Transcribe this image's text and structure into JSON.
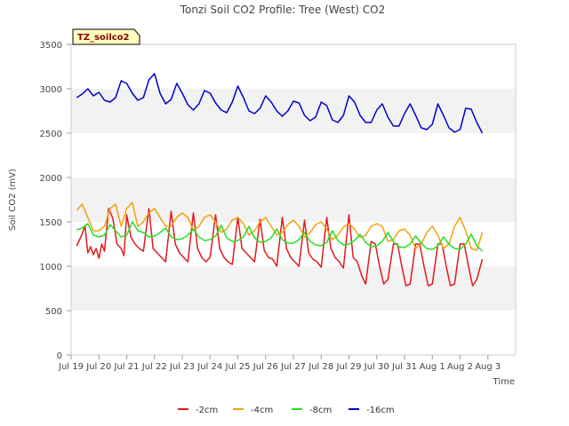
{
  "chart_data": {
    "type": "line",
    "title": "Tonzi Soil CO2 Profile: Tree (West) CO2",
    "xlabel": "Time",
    "ylabel": "Soil CO2 (mV)",
    "tag": "TZ_soilco2",
    "ylim": [
      0,
      3500
    ],
    "yticks": [
      0,
      500,
      1000,
      1500,
      2000,
      2500,
      3000,
      3500
    ],
    "xlim": [
      0,
      16
    ],
    "xtick_labels": [
      "Jul 19",
      "Jul 20",
      "Jul 21",
      "Jul 22",
      "Jul 23",
      "Jul 24",
      "Jul 25",
      "Jul 26",
      "Jul 27",
      "Jul 28",
      "Jul 29",
      "Jul 30",
      "Jul 31",
      "Aug 1",
      "Aug 2",
      "Aug 3"
    ],
    "x_unit": "days since Jul 19 00:00",
    "grid": "horizontal bands",
    "legend_position": "bottom",
    "series": [
      {
        "name": "-2cm",
        "color": "#e31a1c",
        "x": [
          0.2,
          0.35,
          0.5,
          0.6,
          0.7,
          0.8,
          0.9,
          1.0,
          1.1,
          1.2,
          1.35,
          1.5,
          1.65,
          1.8,
          1.9,
          2.0,
          2.15,
          2.3,
          2.45,
          2.6,
          2.8,
          2.95,
          3.1,
          3.25,
          3.4,
          3.6,
          3.75,
          3.9,
          4.05,
          4.2,
          4.4,
          4.55,
          4.7,
          4.85,
          5.0,
          5.2,
          5.35,
          5.5,
          5.65,
          5.8,
          6.0,
          6.15,
          6.3,
          6.45,
          6.6,
          6.8,
          6.95,
          7.1,
          7.25,
          7.4,
          7.6,
          7.75,
          7.9,
          8.05,
          8.2,
          8.4,
          8.55,
          8.7,
          8.85,
          9.0,
          9.2,
          9.35,
          9.5,
          9.65,
          9.8,
          10.0,
          10.15,
          10.3,
          10.45,
          10.6,
          10.8,
          10.95,
          11.1,
          11.25,
          11.4,
          11.6,
          11.75,
          11.9,
          12.05,
          12.2,
          12.4,
          12.55,
          12.7,
          12.85,
          13.0,
          13.2,
          13.35,
          13.5,
          13.65,
          13.8,
          14.0,
          14.15,
          14.3,
          14.45,
          14.6,
          14.8
        ],
        "values": [
          1230,
          1330,
          1450,
          1150,
          1220,
          1130,
          1200,
          1090,
          1250,
          1170,
          1650,
          1540,
          1250,
          1200,
          1120,
          1580,
          1330,
          1250,
          1200,
          1170,
          1650,
          1200,
          1150,
          1100,
          1050,
          1620,
          1250,
          1150,
          1100,
          1050,
          1600,
          1200,
          1100,
          1050,
          1100,
          1580,
          1200,
          1100,
          1050,
          1020,
          1550,
          1200,
          1150,
          1100,
          1050,
          1530,
          1180,
          1100,
          1080,
          1000,
          1550,
          1200,
          1100,
          1050,
          1000,
          1520,
          1150,
          1080,
          1050,
          990,
          1550,
          1200,
          1100,
          1050,
          980,
          1580,
          1100,
          1050,
          900,
          800,
          1280,
          1250,
          1000,
          800,
          850,
          1250,
          1250,
          1000,
          780,
          800,
          1250,
          1250,
          1000,
          780,
          800,
          1250,
          1250,
          1000,
          780,
          800,
          1250,
          1250,
          1000,
          780,
          850,
          1080
        ]
      },
      {
        "name": "-4cm",
        "color": "#f0a30a",
        "x": [
          0.2,
          0.4,
          0.6,
          0.8,
          1.0,
          1.2,
          1.4,
          1.6,
          1.8,
          2.0,
          2.2,
          2.4,
          2.6,
          2.8,
          3.0,
          3.2,
          3.4,
          3.6,
          3.8,
          4.0,
          4.2,
          4.4,
          4.6,
          4.8,
          5.0,
          5.2,
          5.4,
          5.6,
          5.8,
          6.0,
          6.2,
          6.4,
          6.6,
          6.8,
          7.0,
          7.2,
          7.4,
          7.6,
          7.8,
          8.0,
          8.2,
          8.4,
          8.6,
          8.8,
          9.0,
          9.2,
          9.4,
          9.6,
          9.8,
          10.0,
          10.2,
          10.4,
          10.6,
          10.8,
          11.0,
          11.2,
          11.4,
          11.6,
          11.8,
          12.0,
          12.2,
          12.4,
          12.6,
          12.8,
          13.0,
          13.2,
          13.4,
          13.6,
          13.8,
          14.0,
          14.2,
          14.4,
          14.6,
          14.8
        ],
        "values": [
          1630,
          1700,
          1550,
          1400,
          1400,
          1450,
          1650,
          1700,
          1450,
          1650,
          1720,
          1450,
          1500,
          1600,
          1650,
          1550,
          1450,
          1450,
          1550,
          1600,
          1550,
          1400,
          1450,
          1550,
          1580,
          1500,
          1380,
          1420,
          1520,
          1550,
          1480,
          1350,
          1400,
          1500,
          1550,
          1450,
          1350,
          1380,
          1470,
          1520,
          1450,
          1330,
          1380,
          1470,
          1500,
          1420,
          1300,
          1350,
          1440,
          1480,
          1420,
          1320,
          1350,
          1450,
          1480,
          1450,
          1280,
          1300,
          1400,
          1420,
          1350,
          1200,
          1250,
          1380,
          1450,
          1350,
          1200,
          1250,
          1450,
          1550,
          1400,
          1200,
          1180,
          1380
        ]
      },
      {
        "name": "-8cm",
        "color": "#22e022",
        "x": [
          0.2,
          0.4,
          0.6,
          0.8,
          1.0,
          1.2,
          1.4,
          1.6,
          1.8,
          2.0,
          2.2,
          2.4,
          2.6,
          2.8,
          3.0,
          3.2,
          3.4,
          3.6,
          3.8,
          4.0,
          4.2,
          4.4,
          4.6,
          4.8,
          5.0,
          5.2,
          5.4,
          5.6,
          5.8,
          6.0,
          6.2,
          6.4,
          6.6,
          6.8,
          7.0,
          7.2,
          7.4,
          7.6,
          7.8,
          8.0,
          8.2,
          8.4,
          8.6,
          8.8,
          9.0,
          9.2,
          9.4,
          9.6,
          9.8,
          10.0,
          10.2,
          10.4,
          10.6,
          10.8,
          11.0,
          11.2,
          11.4,
          11.6,
          11.8,
          12.0,
          12.2,
          12.4,
          12.6,
          12.8,
          13.0,
          13.2,
          13.4,
          13.6,
          13.8,
          14.0,
          14.2,
          14.4,
          14.6,
          14.8
        ],
        "values": [
          1410,
          1430,
          1480,
          1350,
          1330,
          1350,
          1470,
          1400,
          1330,
          1350,
          1500,
          1400,
          1380,
          1330,
          1340,
          1380,
          1430,
          1330,
          1300,
          1310,
          1350,
          1420,
          1330,
          1290,
          1300,
          1340,
          1460,
          1320,
          1280,
          1290,
          1330,
          1450,
          1320,
          1270,
          1280,
          1320,
          1420,
          1300,
          1260,
          1260,
          1300,
          1380,
          1280,
          1240,
          1230,
          1270,
          1400,
          1290,
          1240,
          1250,
          1290,
          1360,
          1270,
          1220,
          1230,
          1280,
          1380,
          1280,
          1220,
          1210,
          1250,
          1340,
          1260,
          1200,
          1190,
          1230,
          1330,
          1250,
          1200,
          1190,
          1250,
          1360,
          1230,
          1170
        ]
      },
      {
        "name": "-16cm",
        "color": "#0000cc",
        "x": [
          0.2,
          0.4,
          0.6,
          0.8,
          1.0,
          1.2,
          1.4,
          1.6,
          1.8,
          2.0,
          2.2,
          2.4,
          2.6,
          2.8,
          3.0,
          3.2,
          3.4,
          3.6,
          3.8,
          4.0,
          4.2,
          4.4,
          4.6,
          4.8,
          5.0,
          5.2,
          5.4,
          5.6,
          5.8,
          6.0,
          6.2,
          6.4,
          6.6,
          6.8,
          7.0,
          7.2,
          7.4,
          7.6,
          7.8,
          8.0,
          8.2,
          8.4,
          8.6,
          8.8,
          9.0,
          9.2,
          9.4,
          9.6,
          9.8,
          10.0,
          10.2,
          10.4,
          10.6,
          10.8,
          11.0,
          11.2,
          11.4,
          11.6,
          11.8,
          12.0,
          12.2,
          12.4,
          12.6,
          12.8,
          13.0,
          13.2,
          13.4,
          13.6,
          13.8,
          14.0,
          14.2,
          14.4,
          14.6,
          14.8
        ],
        "values": [
          2900,
          2940,
          3000,
          2920,
          2960,
          2870,
          2850,
          2900,
          3090,
          3060,
          2950,
          2870,
          2900,
          3100,
          3170,
          2950,
          2830,
          2880,
          3060,
          2950,
          2820,
          2760,
          2830,
          2980,
          2950,
          2840,
          2760,
          2730,
          2850,
          3030,
          2900,
          2750,
          2720,
          2780,
          2920,
          2850,
          2750,
          2690,
          2750,
          2860,
          2840,
          2700,
          2640,
          2680,
          2850,
          2810,
          2650,
          2620,
          2700,
          2920,
          2850,
          2700,
          2620,
          2620,
          2760,
          2830,
          2680,
          2580,
          2580,
          2720,
          2830,
          2700,
          2560,
          2540,
          2600,
          2830,
          2700,
          2560,
          2510,
          2540,
          2780,
          2770,
          2620,
          2500
        ]
      }
    ]
  }
}
